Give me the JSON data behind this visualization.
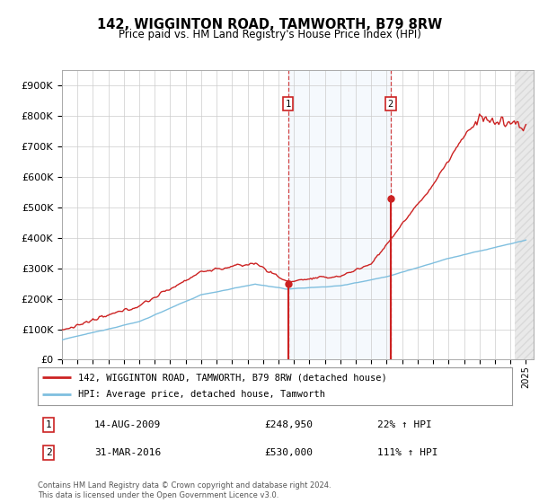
{
  "title": "142, WIGGINTON ROAD, TAMWORTH, B79 8RW",
  "subtitle": "Price paid vs. HM Land Registry's House Price Index (HPI)",
  "ylim": [
    0,
    950000
  ],
  "yticks": [
    0,
    100000,
    200000,
    300000,
    400000,
    500000,
    600000,
    700000,
    800000,
    900000
  ],
  "ytick_labels": [
    "£0",
    "£100K",
    "£200K",
    "£300K",
    "£400K",
    "£500K",
    "£600K",
    "£700K",
    "£800K",
    "£900K"
  ],
  "x_start_year": 1995,
  "x_end_year": 2025,
  "hpi_color": "#7fbfdf",
  "price_color": "#cc2222",
  "sale1_year": 2009.62,
  "sale1_price": 248950,
  "sale2_year": 2016.25,
  "sale2_price": 530000,
  "sale1_label": "1",
  "sale2_label": "2",
  "sale1_date": "14-AUG-2009",
  "sale1_amount": "£248,950",
  "sale1_hpi": "22% ↑ HPI",
  "sale2_date": "31-MAR-2016",
  "sale2_amount": "£530,000",
  "sale2_hpi": "111% ↑ HPI",
  "legend_line1": "142, WIGGINTON ROAD, TAMWORTH, B79 8RW (detached house)",
  "legend_line2": "HPI: Average price, detached house, Tamworth",
  "footnote": "Contains HM Land Registry data © Crown copyright and database right 2024.\nThis data is licensed under the Open Government Licence v3.0.",
  "background_color": "#ffffff",
  "grid_color": "#cccccc",
  "shade_color": "#ddeeff",
  "hatch_color": "#dddddd"
}
